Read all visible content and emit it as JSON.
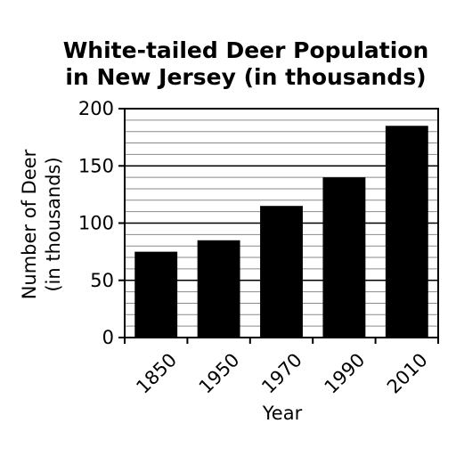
{
  "chart_data": {
    "type": "bar",
    "title_lines": [
      "White-tailed Deer Population",
      "in New Jersey (in thousands)"
    ],
    "xlabel": "Year",
    "ylabel_lines": [
      "Number of Deer",
      "(in thousands)"
    ],
    "categories": [
      "1850",
      "1950",
      "1970",
      "1990",
      "2010"
    ],
    "values": [
      75,
      85,
      115,
      140,
      185
    ],
    "ylim": [
      0,
      200
    ],
    "y_ticks": [
      0,
      50,
      100,
      150,
      200
    ],
    "minor_grid_step": 10,
    "grid": true,
    "bar_color": "#000000"
  }
}
